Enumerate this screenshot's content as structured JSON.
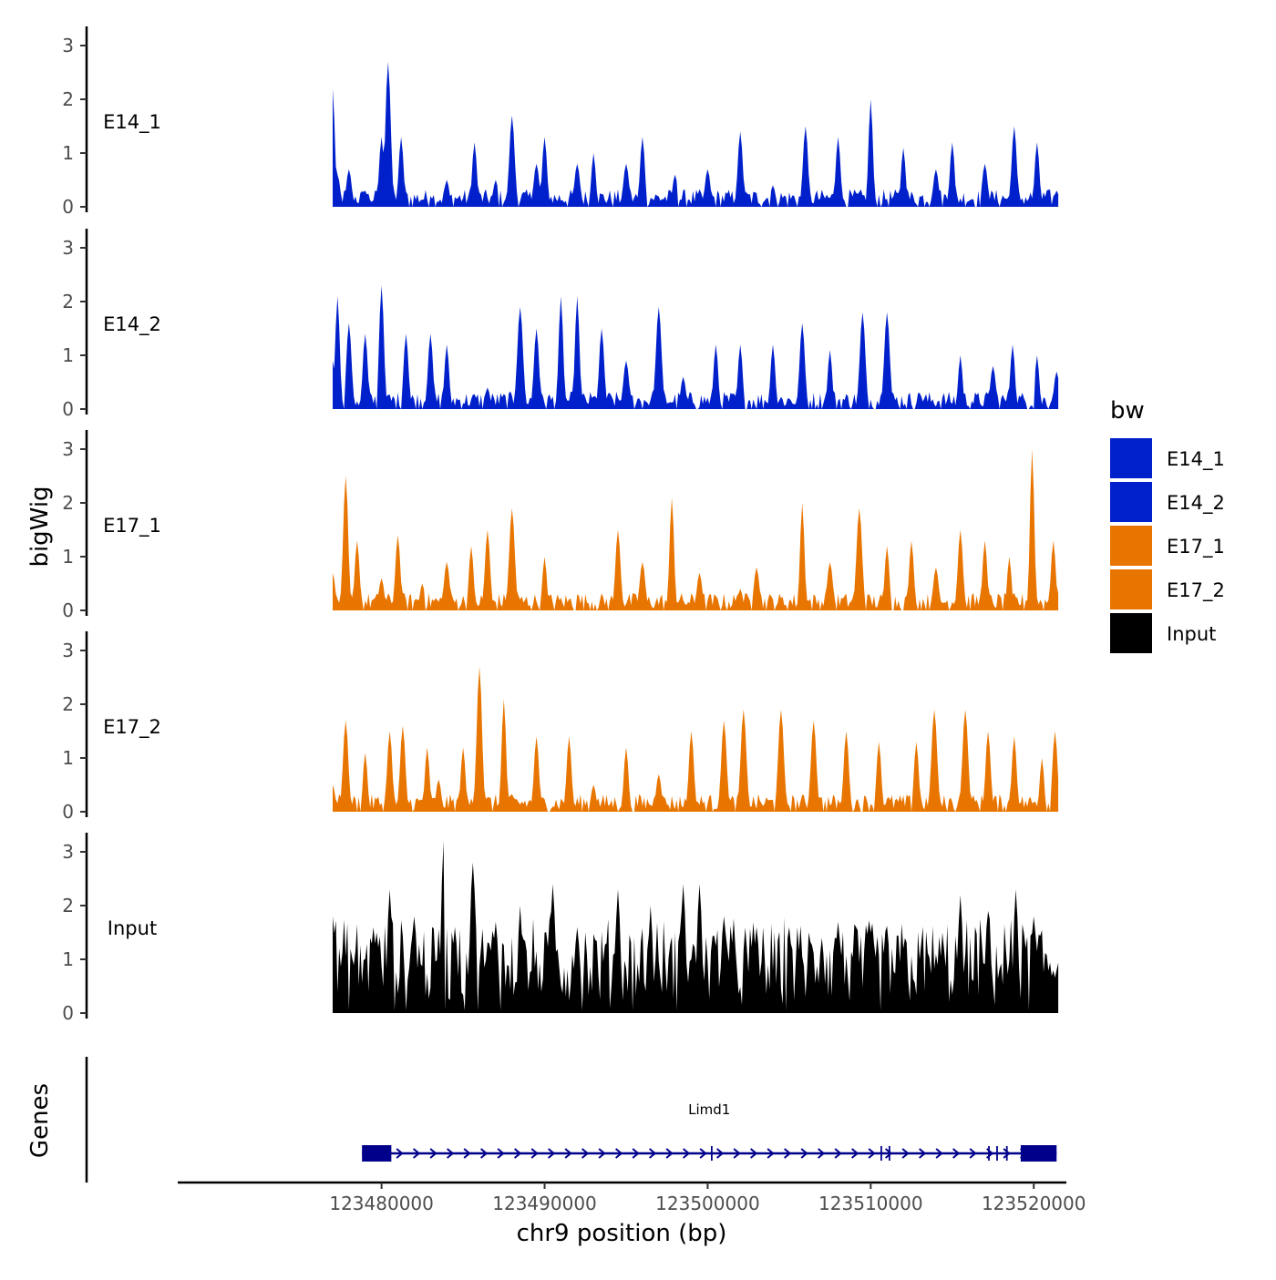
{
  "chart_data": {
    "type": "area",
    "chromosome": "chr9",
    "xlabel": "chr9 position (bp)",
    "ylabel": "bigWig",
    "gene_panel_label": "Genes",
    "xlim": [
      123467500,
      123522000
    ],
    "x_ticks": [
      123480000,
      123490000,
      123500000,
      123510000,
      123520000
    ],
    "x_tick_labels": [
      "123480000",
      "123490000",
      "123500000",
      "123510000",
      "123520000"
    ],
    "ylim": [
      0,
      3.2
    ],
    "y_ticks": [
      0,
      1,
      2,
      3
    ],
    "y_tick_labels": [
      "0",
      "1",
      "2",
      "3"
    ],
    "data_range": [
      123477000,
      123521500
    ],
    "tracks": [
      {
        "name": "E14_1",
        "color": "#0020CC",
        "peaks": [
          [
            123477000,
            2.2
          ],
          [
            123477300,
            0.6
          ],
          [
            123478000,
            0.7
          ],
          [
            123479000,
            0.3
          ],
          [
            123480000,
            1.3
          ],
          [
            123480400,
            2.7
          ],
          [
            123481200,
            1.3
          ],
          [
            123483000,
            0.2
          ],
          [
            123484000,
            0.5
          ],
          [
            123485700,
            1.2
          ],
          [
            123487000,
            0.5
          ],
          [
            123488000,
            1.7
          ],
          [
            123489500,
            0.8
          ],
          [
            123490000,
            1.3
          ],
          [
            123492000,
            0.8
          ],
          [
            123493000,
            1.0
          ],
          [
            123495000,
            0.8
          ],
          [
            123496000,
            1.3
          ],
          [
            123498000,
            0.6
          ],
          [
            123500000,
            0.7
          ],
          [
            123502000,
            1.4
          ],
          [
            123504000,
            0.4
          ],
          [
            123506000,
            1.5
          ],
          [
            123508000,
            1.3
          ],
          [
            123510000,
            2.0
          ],
          [
            123512000,
            1.1
          ],
          [
            123514000,
            0.7
          ],
          [
            123515000,
            1.2
          ],
          [
            123517000,
            0.8
          ],
          [
            123518800,
            1.5
          ],
          [
            123520200,
            1.2
          ],
          [
            123521400,
            0.3
          ]
        ]
      },
      {
        "name": "E14_2",
        "color": "#0020CC",
        "peaks": [
          [
            123477000,
            0.9
          ],
          [
            123477300,
            2.1
          ],
          [
            123478000,
            1.6
          ],
          [
            123479000,
            1.4
          ],
          [
            123480000,
            2.3
          ],
          [
            123481500,
            1.4
          ],
          [
            123483000,
            1.4
          ],
          [
            123484000,
            1.2
          ],
          [
            123486500,
            0.4
          ],
          [
            123488500,
            1.9
          ],
          [
            123489500,
            1.5
          ],
          [
            123491000,
            2.1
          ],
          [
            123492000,
            2.1
          ],
          [
            123493500,
            1.5
          ],
          [
            123495000,
            0.9
          ],
          [
            123497000,
            1.9
          ],
          [
            123498500,
            0.6
          ],
          [
            123500500,
            1.2
          ],
          [
            123502000,
            1.2
          ],
          [
            123504000,
            1.2
          ],
          [
            123505800,
            1.6
          ],
          [
            123507500,
            1.1
          ],
          [
            123509500,
            1.8
          ],
          [
            123511000,
            1.8
          ],
          [
            123513000,
            0.3
          ],
          [
            123515500,
            1.0
          ],
          [
            123517500,
            0.8
          ],
          [
            123518700,
            1.2
          ],
          [
            123520200,
            1.0
          ],
          [
            123521400,
            0.7
          ]
        ]
      },
      {
        "name": "E17_1",
        "color": "#E87500",
        "peaks": [
          [
            123477000,
            0.7
          ],
          [
            123477800,
            2.5
          ],
          [
            123478500,
            1.3
          ],
          [
            123480000,
            0.6
          ],
          [
            123481000,
            1.4
          ],
          [
            123482500,
            0.5
          ],
          [
            123484000,
            0.9
          ],
          [
            123485500,
            1.2
          ],
          [
            123486500,
            1.5
          ],
          [
            123488000,
            1.9
          ],
          [
            123490000,
            1.0
          ],
          [
            123492000,
            0.3
          ],
          [
            123494500,
            1.5
          ],
          [
            123496000,
            0.9
          ],
          [
            123497800,
            2.1
          ],
          [
            123499500,
            0.7
          ],
          [
            123502000,
            0.4
          ],
          [
            123503000,
            0.8
          ],
          [
            123505800,
            2.0
          ],
          [
            123507500,
            0.9
          ],
          [
            123509300,
            1.9
          ],
          [
            123511000,
            1.2
          ],
          [
            123512500,
            1.3
          ],
          [
            123514000,
            0.8
          ],
          [
            123515500,
            1.5
          ],
          [
            123517000,
            1.3
          ],
          [
            123518500,
            1.0
          ],
          [
            123519900,
            3.0
          ],
          [
            123521200,
            1.3
          ]
        ]
      },
      {
        "name": "E17_2",
        "color": "#E87500",
        "peaks": [
          [
            123477000,
            0.5
          ],
          [
            123477800,
            1.7
          ],
          [
            123479000,
            1.1
          ],
          [
            123480500,
            1.5
          ],
          [
            123481300,
            1.6
          ],
          [
            123482800,
            1.2
          ],
          [
            123483500,
            0.6
          ],
          [
            123485000,
            1.2
          ],
          [
            123486000,
            2.7
          ],
          [
            123487500,
            2.1
          ],
          [
            123489500,
            1.4
          ],
          [
            123491500,
            1.4
          ],
          [
            123493000,
            0.5
          ],
          [
            123495000,
            1.2
          ],
          [
            123497000,
            0.7
          ],
          [
            123499000,
            1.5
          ],
          [
            123501000,
            1.7
          ],
          [
            123502200,
            1.9
          ],
          [
            123504500,
            1.9
          ],
          [
            123506500,
            1.7
          ],
          [
            123508500,
            1.5
          ],
          [
            123510500,
            1.3
          ],
          [
            123512800,
            1.3
          ],
          [
            123513900,
            1.9
          ],
          [
            123515800,
            1.9
          ],
          [
            123517200,
            1.5
          ],
          [
            123518800,
            1.4
          ],
          [
            123520500,
            1.0
          ],
          [
            123521300,
            1.5
          ]
        ]
      },
      {
        "name": "Input",
        "color": "#000000",
        "peaks": [
          [
            123477000,
            1.8
          ],
          [
            123478000,
            1.5
          ],
          [
            123479500,
            1.6
          ],
          [
            123480500,
            2.3
          ],
          [
            123482000,
            1.8
          ],
          [
            123483800,
            3.2
          ],
          [
            123484500,
            1.6
          ],
          [
            123485600,
            2.8
          ],
          [
            123487000,
            1.7
          ],
          [
            123488500,
            2.0
          ],
          [
            123490500,
            2.4
          ],
          [
            123492000,
            1.6
          ],
          [
            123494500,
            2.3
          ],
          [
            123496500,
            2.0
          ],
          [
            123498500,
            2.4
          ],
          [
            123499500,
            2.4
          ],
          [
            123501000,
            1.8
          ],
          [
            123503000,
            1.6
          ],
          [
            123505000,
            1.6
          ],
          [
            123507000,
            1.4
          ],
          [
            123508000,
            1.7
          ],
          [
            123510000,
            1.5
          ],
          [
            123512000,
            1.2
          ],
          [
            123514000,
            1.1
          ],
          [
            123515500,
            2.2
          ],
          [
            123517200,
            1.9
          ],
          [
            123518900,
            2.3
          ],
          [
            123520000,
            1.8
          ],
          [
            123521400,
            0.8
          ]
        ]
      }
    ],
    "legend": {
      "title": "bw",
      "position": "right",
      "entries": [
        {
          "label": "E14_1",
          "color": "#0020CC"
        },
        {
          "label": "E14_2",
          "color": "#0020CC"
        },
        {
          "label": "E17_1",
          "color": "#E87500"
        },
        {
          "label": "E17_2",
          "color": "#E87500"
        },
        {
          "label": "Input",
          "color": "#000000"
        }
      ]
    },
    "genes": [
      {
        "name": "Limd1",
        "strand": "+",
        "color": "#00008B",
        "start": 123478800,
        "end": 123521400,
        "exons": [
          [
            123478800,
            123480600
          ],
          [
            123500200,
            123500300
          ],
          [
            123510600,
            123510700
          ],
          [
            123511100,
            123511200
          ],
          [
            123517200,
            123517300
          ],
          [
            123517700,
            123517800
          ],
          [
            123518300,
            123518400
          ],
          [
            123519200,
            123521400
          ]
        ]
      }
    ]
  }
}
